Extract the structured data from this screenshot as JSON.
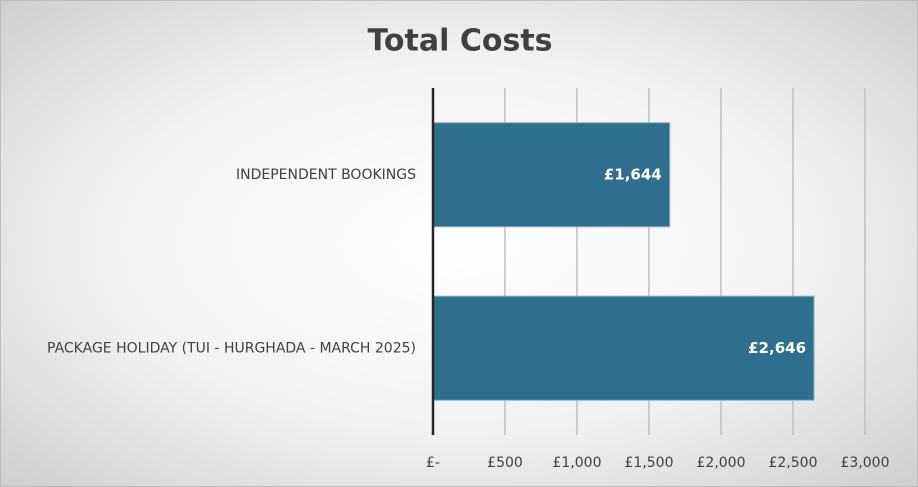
{
  "chart_data": {
    "type": "hbar",
    "title": "Total Costs",
    "categories": [
      "INDEPENDENT BOOKINGS",
      "PACKAGE HOLIDAY (TUI - HURGHADA - MARCH 2025)"
    ],
    "values": [
      1644,
      2646
    ],
    "value_labels": [
      "£1,644",
      "£2,646"
    ],
    "color": "#2e6f8e",
    "xlim": [
      0,
      3000
    ],
    "xticks": [
      {
        "value": 0,
        "label": "£-"
      },
      {
        "value": 500,
        "label": "£500"
      },
      {
        "value": 1000,
        "label": "£1,000"
      },
      {
        "value": 1500,
        "label": "£1,500"
      },
      {
        "value": 2000,
        "label": "£2,000"
      },
      {
        "value": 2500,
        "label": "£2,500"
      },
      {
        "value": 3000,
        "label": "£3,000"
      }
    ],
    "grid": true
  }
}
